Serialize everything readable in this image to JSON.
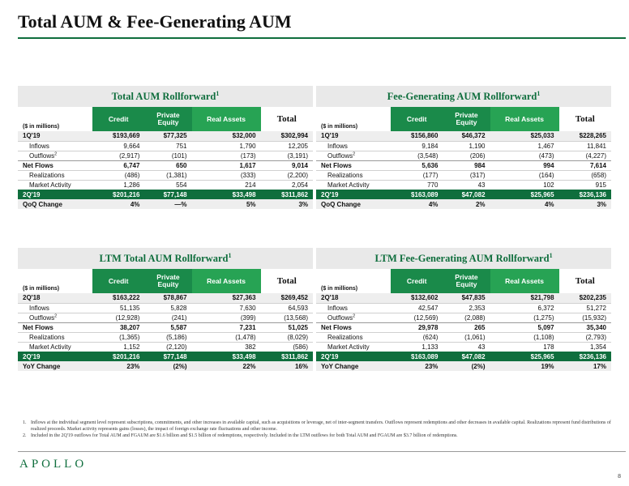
{
  "page": {
    "title": "Total AUM & Fee-Generating AUM",
    "logo": "APOLLO",
    "page_number": "8"
  },
  "columns": {
    "unit": "($ in millions)",
    "credit": "Credit",
    "pe_line1": "Private",
    "pe_line2": "Equity",
    "ra": "Real Assets",
    "total": "Total"
  },
  "panels": [
    {
      "title": "Total AUM Rollforward",
      "sup": "1",
      "rows": [
        {
          "label": "1Q'19",
          "sup": "",
          "v": [
            "$193,669",
            "$77,325",
            "$32,000",
            "$302,994"
          ]
        },
        {
          "label": "Inflows",
          "sup": "",
          "v": [
            "9,664",
            "751",
            "1,790",
            "12,205"
          ]
        },
        {
          "label": "Outflows",
          "sup": "2",
          "v": [
            "(2,917)",
            "(101)",
            "(173)",
            "(3,191)"
          ]
        },
        {
          "label": "Net Flows",
          "sup": "",
          "v": [
            "6,747",
            "650",
            "1,617",
            "9,014"
          ]
        },
        {
          "label": "Realizations",
          "sup": "",
          "v": [
            "(486)",
            "(1,381)",
            "(333)",
            "(2,200)"
          ]
        },
        {
          "label": "Market Activity",
          "sup": "",
          "v": [
            "1,286",
            "554",
            "214",
            "2,054"
          ]
        },
        {
          "label": "2Q'19",
          "sup": "",
          "v": [
            "$201,216",
            "$77,148",
            "$33,498",
            "$311,862"
          ]
        },
        {
          "label": "QoQ Change",
          "sup": "",
          "v": [
            "4%",
            "—%",
            "5%",
            "3%"
          ]
        }
      ]
    },
    {
      "title": "Fee-Generating AUM Rollforward",
      "sup": "1",
      "rows": [
        {
          "label": "1Q'19",
          "sup": "",
          "v": [
            "$156,860",
            "$46,372",
            "$25,033",
            "$228,265"
          ]
        },
        {
          "label": "Inflows",
          "sup": "",
          "v": [
            "9,184",
            "1,190",
            "1,467",
            "11,841"
          ]
        },
        {
          "label": "Outflows",
          "sup": "2",
          "v": [
            "(3,548)",
            "(206)",
            "(473)",
            "(4,227)"
          ]
        },
        {
          "label": "Net Flows",
          "sup": "",
          "v": [
            "5,636",
            "984",
            "994",
            "7,614"
          ]
        },
        {
          "label": "Realizations",
          "sup": "",
          "v": [
            "(177)",
            "(317)",
            "(164)",
            "(658)"
          ]
        },
        {
          "label": "Market Activity",
          "sup": "",
          "v": [
            "770",
            "43",
            "102",
            "915"
          ]
        },
        {
          "label": "2Q'19",
          "sup": "",
          "v": [
            "$163,089",
            "$47,082",
            "$25,965",
            "$236,136"
          ]
        },
        {
          "label": "QoQ Change",
          "sup": "",
          "v": [
            "4%",
            "2%",
            "4%",
            "3%"
          ]
        }
      ]
    },
    {
      "title": "LTM Total AUM Rollforward",
      "sup": "1",
      "rows": [
        {
          "label": "2Q'18",
          "sup": "",
          "v": [
            "$163,222",
            "$78,867",
            "$27,363",
            "$269,452"
          ]
        },
        {
          "label": "Inflows",
          "sup": "",
          "v": [
            "51,135",
            "5,828",
            "7,630",
            "64,593"
          ]
        },
        {
          "label": "Outflows",
          "sup": "2",
          "v": [
            "(12,928)",
            "(241)",
            "(399)",
            "(13,568)"
          ]
        },
        {
          "label": "Net Flows",
          "sup": "",
          "v": [
            "38,207",
            "5,587",
            "7,231",
            "51,025"
          ]
        },
        {
          "label": "Realizations",
          "sup": "",
          "v": [
            "(1,365)",
            "(5,186)",
            "(1,478)",
            "(8,029)"
          ]
        },
        {
          "label": "Market Activity",
          "sup": "",
          "v": [
            "1,152",
            "(2,120)",
            "382",
            "(586)"
          ]
        },
        {
          "label": "2Q'19",
          "sup": "",
          "v": [
            "$201,216",
            "$77,148",
            "$33,498",
            "$311,862"
          ]
        },
        {
          "label": "YoY Change",
          "sup": "",
          "v": [
            "23%",
            "(2%)",
            "22%",
            "16%"
          ]
        }
      ]
    },
    {
      "title": "LTM Fee-Generating AUM Rollforward",
      "sup": "1",
      "rows": [
        {
          "label": "2Q'18",
          "sup": "",
          "v": [
            "$132,602",
            "$47,835",
            "$21,798",
            "$202,235"
          ]
        },
        {
          "label": "Inflows",
          "sup": "",
          "v": [
            "42,547",
            "2,353",
            "6,372",
            "51,272"
          ]
        },
        {
          "label": "Outflows",
          "sup": "2",
          "v": [
            "(12,569)",
            "(2,088)",
            "(1,275)",
            "(15,932)"
          ]
        },
        {
          "label": "Net Flows",
          "sup": "",
          "v": [
            "29,978",
            "265",
            "5,097",
            "35,340"
          ]
        },
        {
          "label": "Realizations",
          "sup": "",
          "v": [
            "(624)",
            "(1,061)",
            "(1,108)",
            "(2,793)"
          ]
        },
        {
          "label": "Market Activity",
          "sup": "",
          "v": [
            "1,133",
            "43",
            "178",
            "1,354"
          ]
        },
        {
          "label": "2Q'19",
          "sup": "",
          "v": [
            "$163,089",
            "$47,082",
            "$25,965",
            "$236,136"
          ]
        },
        {
          "label": "YoY Change",
          "sup": "",
          "v": [
            "23%",
            "(2%)",
            "19%",
            "17%"
          ]
        }
      ]
    }
  ],
  "footnotes": [
    {
      "n": "1.",
      "text": "Inflows at the individual segment level represent subscriptions, commitments, and other increases in available capital, such as acquisitions or leverage, net of inter-segment transfers. Outflows represent redemptions and other decreases in available capital. Realizations represent fund distributions of realized proceeds. Market activity represents gains (losses), the impact of foreign exchange rate fluctuations and other income."
    },
    {
      "n": "2.",
      "text": "Included in the 2Q'19 outflows for Total AUM and FGAUM are $1.6 billion and $1.5 billion of redemptions, respectively. Included in the LTM outflows for both Total AUM and FGAUM are $3.7 billion of redemptions."
    }
  ]
}
